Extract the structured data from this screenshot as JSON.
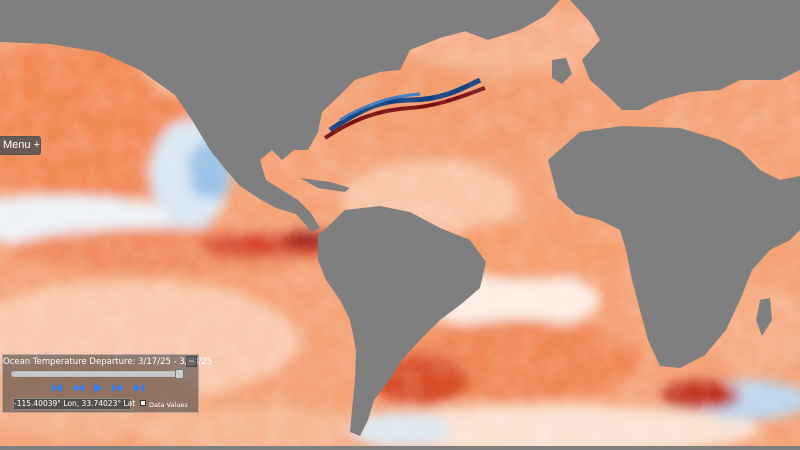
{
  "menu": {
    "label": "Menu +"
  },
  "panel": {
    "title": "Ocean Temperature Departure: 3/17/25 - 3/23/25",
    "collapse_label": "−",
    "timeline_position": 0.98,
    "controls": [
      "skip-to-start-icon",
      "rewind-icon",
      "play-icon",
      "fast-forward-icon",
      "skip-to-end-icon"
    ],
    "coordinates": "-115.40039° Lon, 33.74023° Lat",
    "data_values_label": "Data Values",
    "data_values_checked": false
  },
  "map": {
    "land_color": "#7f7f7f",
    "warm_colors": [
      "#fbe3d2",
      "#f7b692",
      "#f08a5b",
      "#e0562e",
      "#b8281a",
      "#7a0f12"
    ],
    "neutral_color": "#fbf1ea",
    "cool_colors": [
      "#e9f1f8",
      "#bdd7ee",
      "#7fb1df",
      "#3a77bd",
      "#12407f"
    ]
  }
}
